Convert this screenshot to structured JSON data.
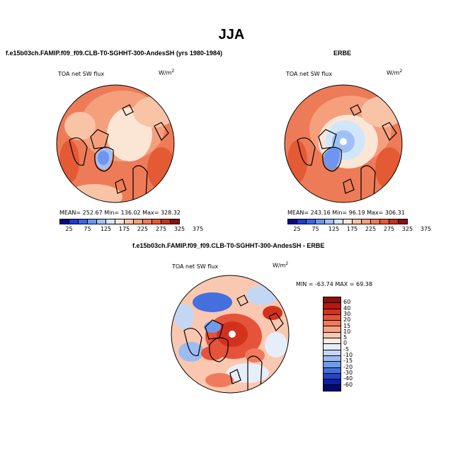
{
  "title": "JJA",
  "panel_left": {
    "subtitle": "f.e15b03ch.FAMIP.f09_f09.CLB-T0-SGHHT-300-AndesSH (yrs 1980-1984)",
    "variable": "TOA net SW flux",
    "units": "W/m",
    "units_exp": "2",
    "stats": "MEAN= 252.67   Min= 136.02   Max= 328.32"
  },
  "panel_right": {
    "subtitle": "ERBE",
    "variable": "TOA net SW flux",
    "units": "W/m",
    "units_exp": "2",
    "stats": "MEAN= 243.16   Min=  96.19   Max= 306.31"
  },
  "panel_diff": {
    "subtitle": "f.e15b03ch.FAMIP.f09_f09.CLB-T0-SGHHT-300-AndesSH - ERBE",
    "variable": "TOA net SW flux",
    "units": "W/m",
    "units_exp": "2",
    "stats": "MIN = -63.74 MAX =  69.38"
  },
  "colorbar_abs": {
    "colors": [
      "#08088a",
      "#1e3ccf",
      "#3c64e6",
      "#6e96f0",
      "#a0c0f5",
      "#d2e6fa",
      "#fbe6d6",
      "#f9c3a5",
      "#f59f7d",
      "#ee7b57",
      "#e35a35",
      "#c8321a",
      "#8c0f0a"
    ],
    "labels": [
      "25",
      "75",
      "125",
      "175",
      "225",
      "275",
      "325",
      "375"
    ]
  },
  "colorbar_diff": {
    "colors": [
      "#8c0f0a",
      "#b4190f",
      "#d2321c",
      "#e5533a",
      "#f07a5c",
      "#f5a285",
      "#fac8b0",
      "#fcebe0",
      "#e6eefa",
      "#c3d7f5",
      "#9cbcf0",
      "#6e9bea",
      "#466fde",
      "#2346c8",
      "#0c1f9c",
      "#06086e"
    ],
    "labels": [
      "60",
      "40",
      "30",
      "20",
      "15",
      "10",
      "5",
      "0",
      "-5",
      "-10",
      "-15",
      "-20",
      "-30",
      "-40",
      "-60"
    ]
  }
}
